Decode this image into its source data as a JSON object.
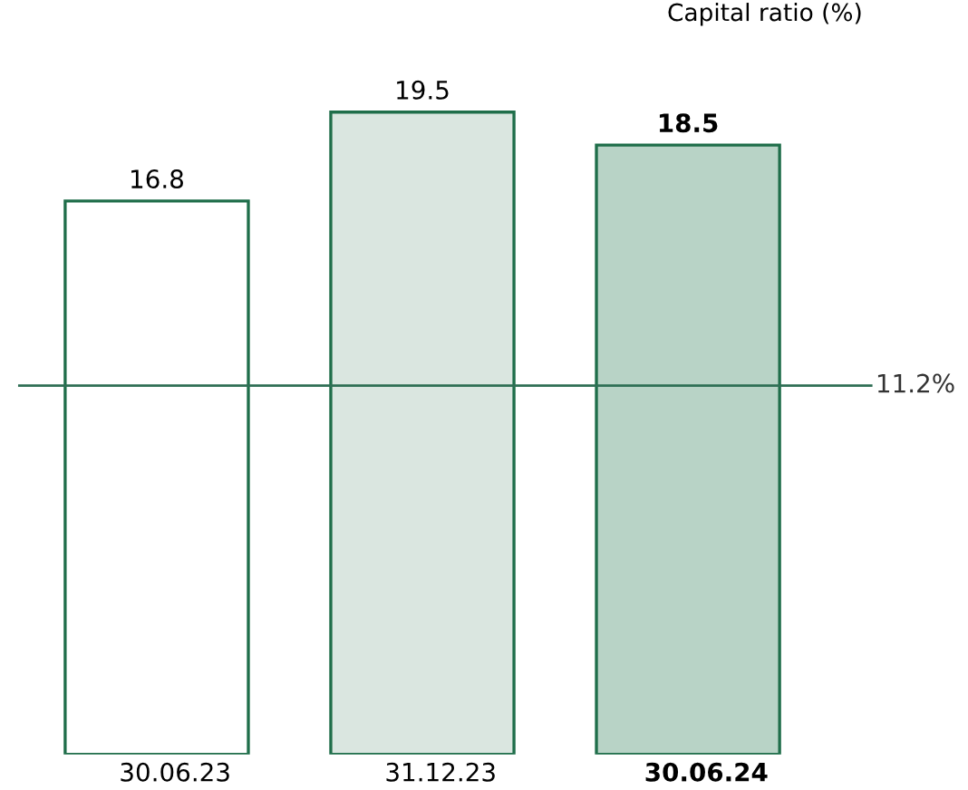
{
  "chart_data": {
    "type": "bar",
    "title": "Capital ratio (%)",
    "categories": [
      "30.06.23",
      "31.12.23",
      "30.06.24"
    ],
    "values": [
      16.8,
      19.5,
      18.5
    ],
    "colors": [
      "#ffffff",
      "#dae6e0",
      "#b8d3c6"
    ],
    "data_labels": true,
    "ref_lines": [
      {
        "axis": "y",
        "value": 11.2,
        "label": "11.2%",
        "color": "#2f6f55"
      }
    ]
  }
}
